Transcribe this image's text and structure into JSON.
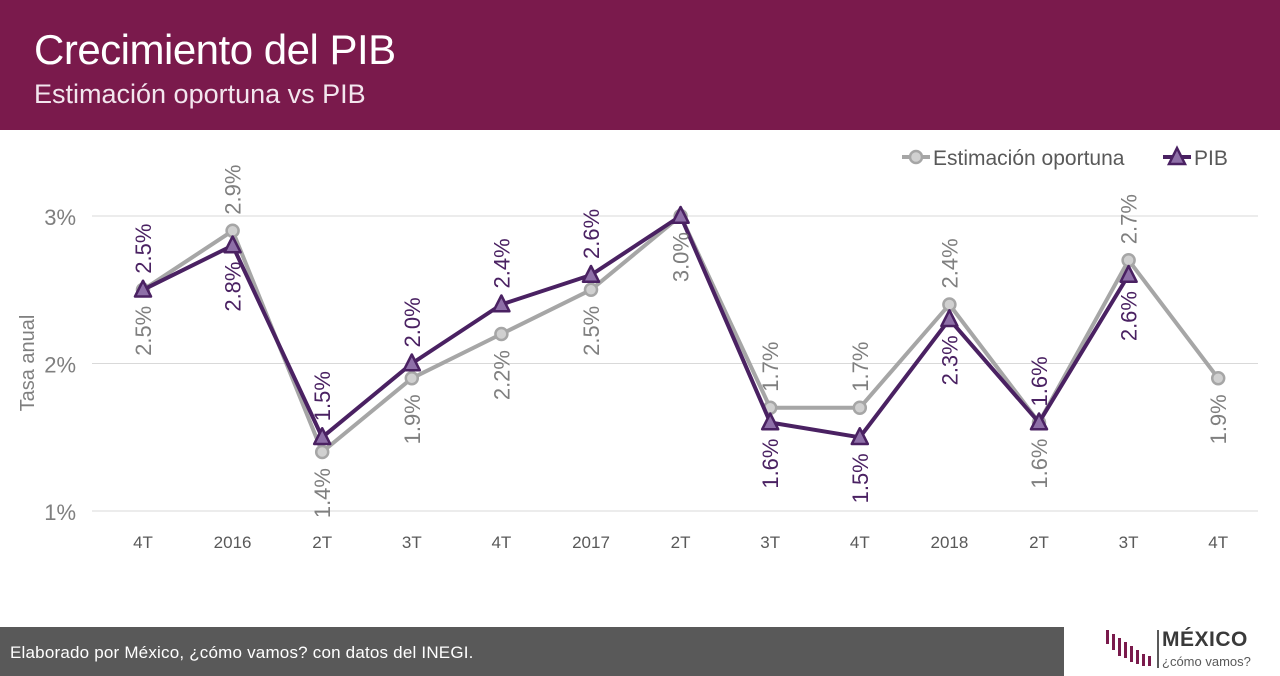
{
  "header": {
    "title": "Crecimiento del PIB",
    "subtitle": "Estimación oportuna vs PIB"
  },
  "footer": {
    "credit": "Elaborado por México, ¿cómo vamos? con datos del INEGI."
  },
  "logo": {
    "name": "MÉXICO",
    "tagline": "¿cómo vamos?"
  },
  "colors": {
    "header_bg": "#7a1a4c",
    "estimacion": "#a6a6a6",
    "pib": "#4a2162",
    "footer_bg": "#595959"
  },
  "chart_data": {
    "type": "line",
    "ylabel": "Tasa anual",
    "ylim": [
      1,
      3
    ],
    "yticks": [
      "1%",
      "2%",
      "3%"
    ],
    "grid": true,
    "legend_position": "top-right",
    "categories": [
      "4T",
      "2016",
      "2T",
      "3T",
      "4T",
      "2017",
      "2T",
      "3T",
      "4T",
      "2018",
      "2T",
      "3T",
      "4T"
    ],
    "series": [
      {
        "name": "Estimación oportuna",
        "marker": "circle",
        "values": [
          2.5,
          2.9,
          1.4,
          1.9,
          2.2,
          2.5,
          3.0,
          1.7,
          1.7,
          2.4,
          1.6,
          2.7,
          1.9
        ],
        "labels": [
          "",
          "2.9%",
          "1.4%",
          "1.9%",
          "2.2%",
          "2.5%",
          "3.0%",
          "1.7%",
          "1.7%",
          "2.4%",
          "1.6%",
          "2.7%",
          "1.9%"
        ]
      },
      {
        "name": "PIB",
        "marker": "triangle",
        "values": [
          2.5,
          2.8,
          1.5,
          2.0,
          2.4,
          2.6,
          3.0,
          1.6,
          1.5,
          2.3,
          1.6,
          2.6,
          null
        ],
        "labels": [
          "2.5%",
          "2.8%",
          "1.5%",
          "2.0%",
          "2.4%",
          "2.6%",
          "",
          "1.6%",
          "1.5%",
          "2.3%",
          "1.6%",
          "2.6%",
          ""
        ]
      }
    ],
    "extra_labels": [
      {
        "series": 0,
        "index": 0,
        "text": "2.5%"
      }
    ]
  }
}
